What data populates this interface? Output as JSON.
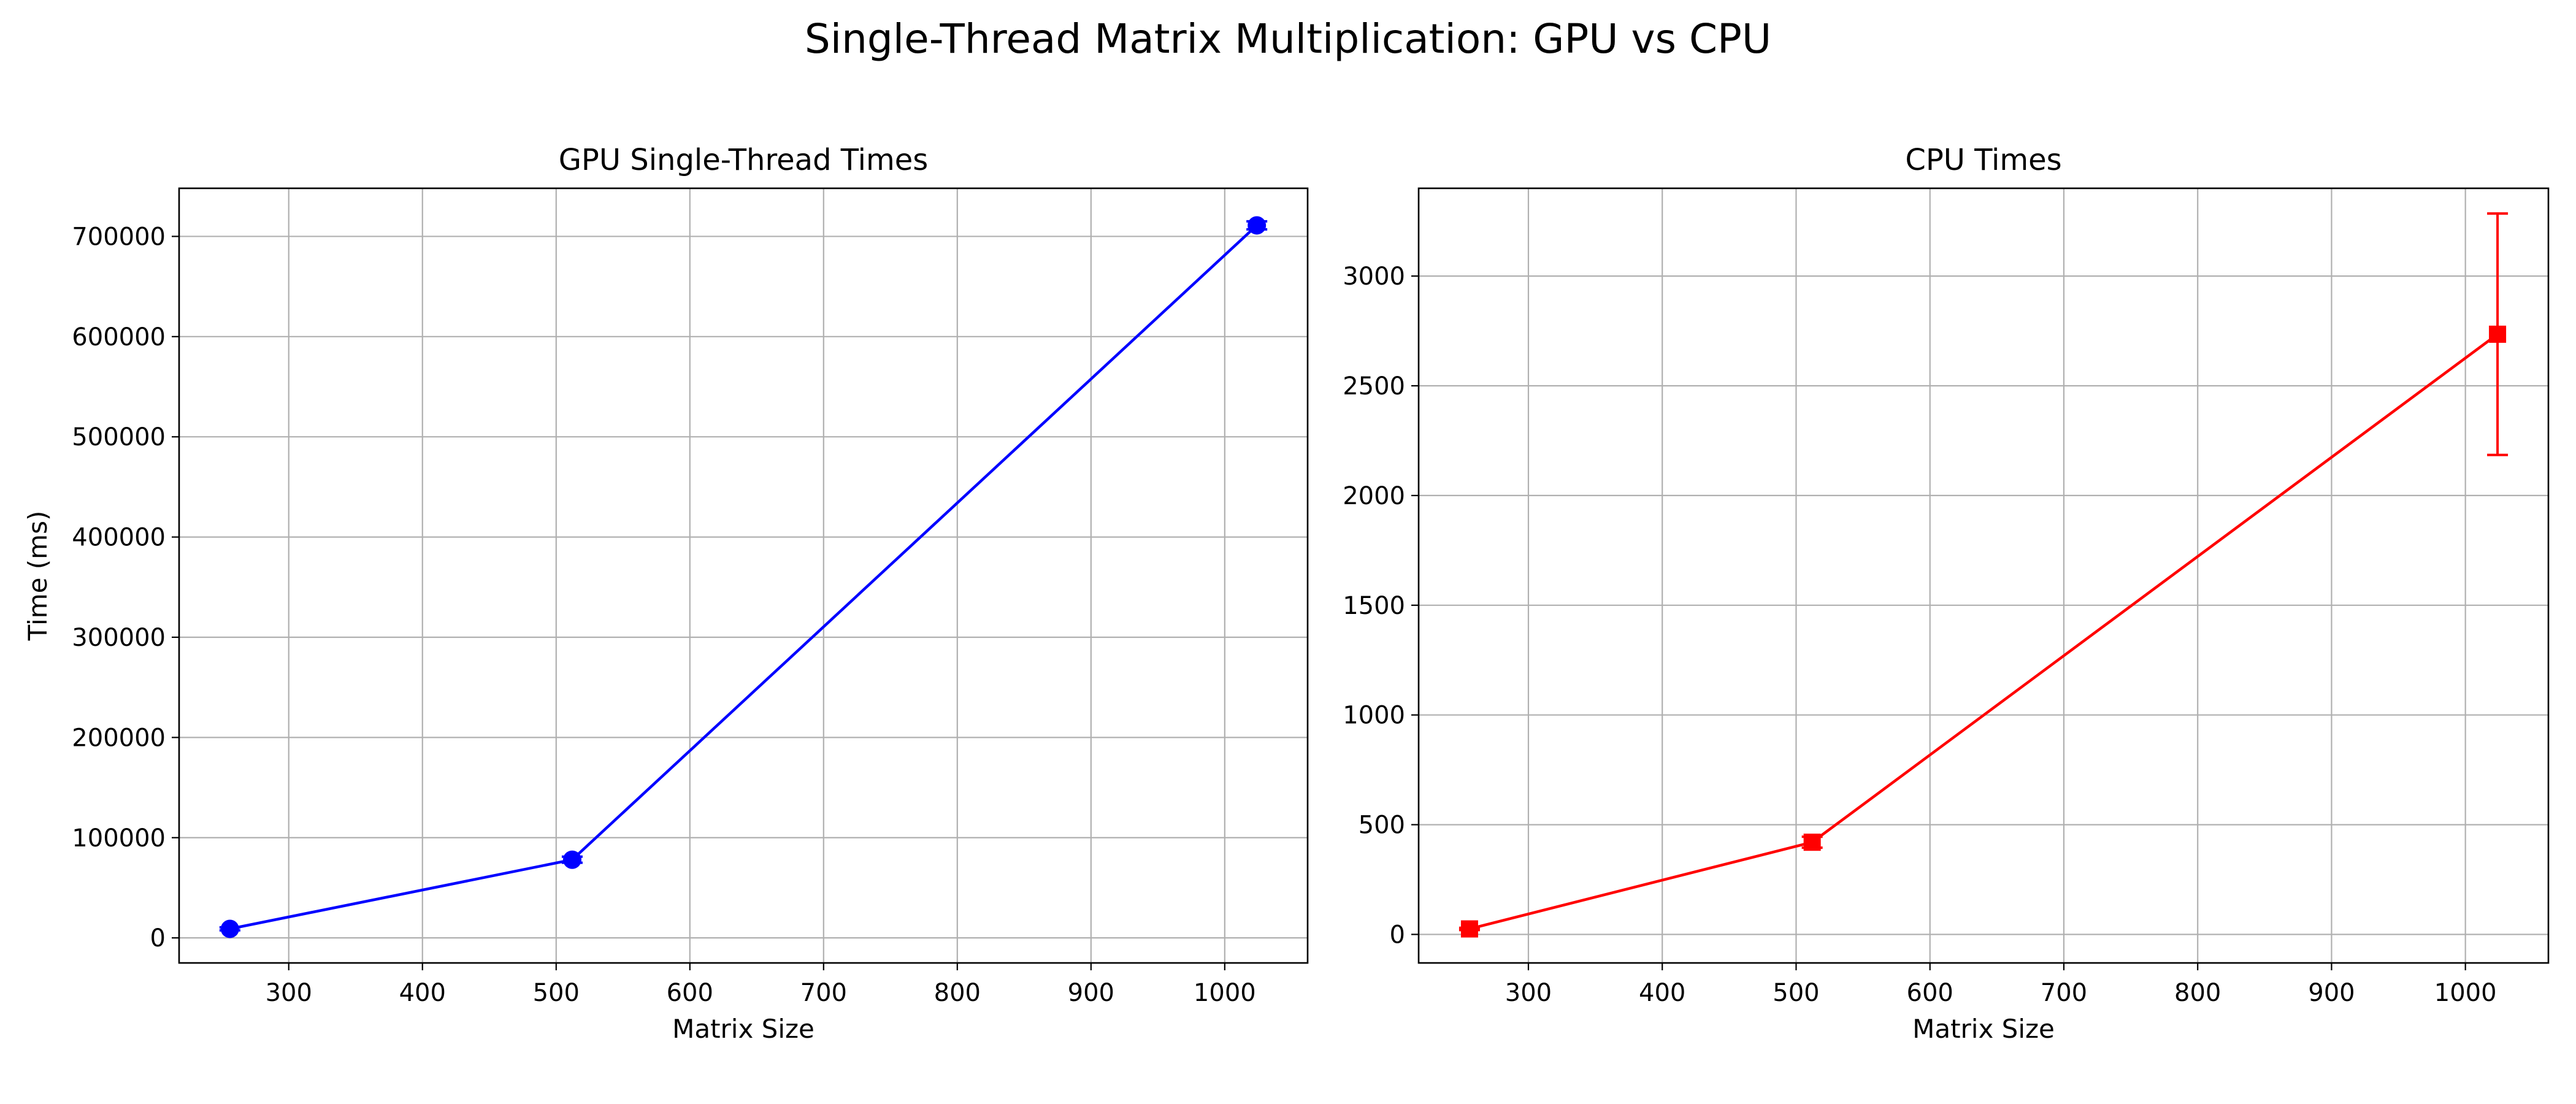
{
  "figure": {
    "title": "Single-Thread Matrix Multiplication: GPU vs CPU"
  },
  "chart_data": [
    {
      "type": "line",
      "title": "GPU Single-Thread Times",
      "xlabel": "Matrix Size",
      "ylabel": "Time (ms)",
      "xlim": [
        218,
        1062
      ],
      "ylim": [
        -25000,
        748000
      ],
      "xticks": [
        300,
        400,
        500,
        600,
        700,
        800,
        900,
        1000
      ],
      "yticks": [
        0,
        100000,
        200000,
        300000,
        400000,
        500000,
        600000,
        700000
      ],
      "grid": true,
      "series": [
        {
          "color": "#0000ff",
          "marker": "circle",
          "x": [
            256,
            512,
            1024
          ],
          "y": [
            9000,
            78000,
            711000
          ],
          "yerr": [
            1500,
            3000,
            4000
          ]
        }
      ]
    },
    {
      "type": "line",
      "title": "CPU Times",
      "xlabel": "Matrix Size",
      "ylabel": "",
      "xlim": [
        218,
        1062
      ],
      "ylim": [
        -130,
        3400
      ],
      "xticks": [
        300,
        400,
        500,
        600,
        700,
        800,
        900,
        1000
      ],
      "yticks": [
        0,
        500,
        1000,
        1500,
        2000,
        2500,
        3000
      ],
      "grid": true,
      "series": [
        {
          "color": "#ff0000",
          "marker": "square",
          "x": [
            256,
            512,
            1024
          ],
          "y": [
            25,
            420,
            2735
          ],
          "yerr": [
            5,
            25,
            550
          ]
        }
      ]
    }
  ]
}
